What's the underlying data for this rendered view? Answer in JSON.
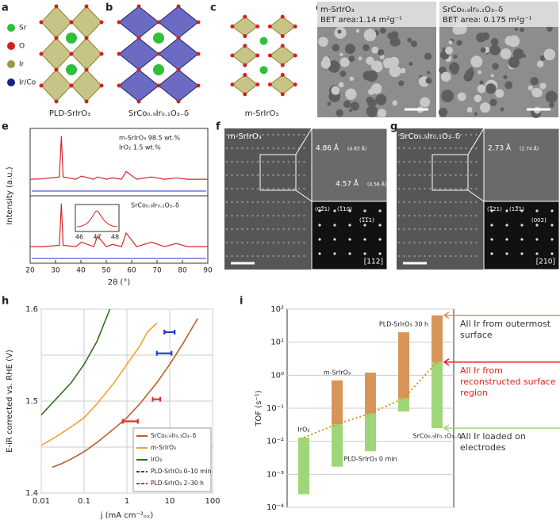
{
  "panel_labels": [
    "a",
    "b",
    "c",
    "d",
    "e",
    "f",
    "g",
    "h",
    "i"
  ],
  "panel_a": {
    "legend": [
      "Sr",
      "O",
      "Ir",
      "Ir/Co"
    ],
    "caption": "PLD-SrIrO₃"
  },
  "panel_b": {
    "caption": "SrCo₀.₉Ir₀.₁O₃₋δ"
  },
  "panel_c": {
    "caption": "m-SrIrO₃"
  },
  "panel_d": {
    "left_title": "m-SrIrO₃",
    "left_bet": "BET area:1.14 m²g⁻¹",
    "right_title": "SrCo₀.₉Ir₀.₁O₃₋δ",
    "right_bet": "BET area: 0.175 m²g⁻¹"
  },
  "panel_f": {
    "title": "m-SrIrO₃",
    "d1": "4.86 Å",
    "d1_ref": "(4.83 Å)",
    "d2": "4.57 Å",
    "d2_ref": "(4.56 Å)",
    "spots": [
      "(02̅1)",
      "(1̅10)",
      "(1̅1̅1)"
    ],
    "zone": "[112]"
  },
  "panel_g": {
    "title": "SrCo₀.₉Ir₀.₁O₃₋δ",
    "d1": "2.73 Å",
    "d1_ref": "(2.74 Å)",
    "spots": [
      "(1̅21)",
      "(12̅1)",
      "(002)"
    ],
    "zone": "[210]"
  },
  "chart_data": [
    {
      "type": "line",
      "ylabel": "Intensity (a.u.)",
      "xlabel": "2θ (°)",
      "xlim": [
        20,
        90
      ],
      "xticks": [
        20,
        30,
        40,
        50,
        60,
        70,
        80,
        90
      ],
      "ylim": [
        0,
        1.1
      ],
      "x": [
        20,
        25,
        31.5,
        32.3,
        33,
        38,
        40.2,
        45,
        46.6,
        50,
        52.5,
        56,
        57.8,
        62,
        67.8,
        73,
        77.5,
        82,
        90
      ],
      "series": [
        {
          "name": "m-SrIrO₃ 98.5 wt.%",
          "color": "#d62728",
          "values": [
            0.05,
            0.06,
            0.1,
            1.0,
            0.1,
            0.05,
            0.12,
            0.05,
            0.1,
            0.05,
            0.08,
            0.05,
            0.22,
            0.05,
            0.1,
            0.05,
            0.08,
            0.05,
            0.05
          ]
        },
        {
          "name": "SrCo₀.₉Ir₀.₁O₃₋δ",
          "color": "#d62728",
          "values": [
            0.05,
            0.05,
            0.08,
            1.0,
            0.08,
            0.05,
            0.15,
            0.05,
            0.28,
            0.05,
            0.1,
            0.05,
            0.35,
            0.05,
            0.15,
            0.05,
            0.12,
            0.05,
            0.05
          ]
        }
      ],
      "annotations": [
        "IrO₂ 1.5 wt.%"
      ],
      "inset_xticks": [
        46,
        47,
        48
      ]
    },
    {
      "type": "line",
      "xlabel": "j (mA cm⁻²ₒₓ)",
      "ylabel": "E-iR corrected vs. RHE (V)",
      "xscale": "log",
      "xlim": [
        0.01,
        100
      ],
      "xticks": [
        0.01,
        0.1,
        1,
        10,
        100
      ],
      "ylim": [
        1.4,
        1.6
      ],
      "yticks": [
        1.4,
        1.5,
        1.6
      ],
      "minor_yticks": [
        1.45,
        1.55
      ],
      "grid": true,
      "legend": "lower right",
      "series": [
        {
          "name": "SrCo₀.₉Ir₀.₁O₃₋δ",
          "color": "#b8612a",
          "x": [
            0.018,
            0.03,
            0.05,
            0.1,
            0.2,
            0.5,
            1,
            2,
            5,
            10,
            20,
            45
          ],
          "values": [
            1.428,
            1.432,
            1.437,
            1.445,
            1.455,
            1.47,
            1.482,
            1.497,
            1.52,
            1.54,
            1.562,
            1.59
          ]
        },
        {
          "name": "m-SrIrO₃",
          "color": "#f5a030",
          "x": [
            0.01,
            0.02,
            0.05,
            0.1,
            0.2,
            0.5,
            1,
            2,
            3,
            5
          ],
          "values": [
            1.452,
            1.46,
            1.472,
            1.482,
            1.497,
            1.52,
            1.54,
            1.56,
            1.575,
            1.585
          ]
        },
        {
          "name": "IrO₂",
          "color": "#2e6e1e",
          "x": [
            0.01,
            0.02,
            0.05,
            0.1,
            0.2,
            0.4
          ],
          "values": [
            1.485,
            1.5,
            1.52,
            1.54,
            1.565,
            1.6
          ]
        }
      ],
      "error_series": [
        {
          "name": "PLD-SrIrO₃ 0–10 min",
          "color": "#1f3fbf",
          "values": [
            1.575,
            1.552
          ],
          "xmin": [
            7.5,
            5
          ],
          "xmax": [
            13,
            11
          ]
        },
        {
          "name": "PLD-SrIrO₃ 2–30 h",
          "color": "#e0302a",
          "values": [
            1.502,
            1.478
          ],
          "xmin": [
            4,
            0.8
          ],
          "xmax": [
            6,
            1.8
          ]
        }
      ]
    },
    {
      "type": "bar",
      "ylabel": "TOF (s⁻¹)",
      "yscale": "log",
      "ylim": [
        0.0001,
        100
      ],
      "yticks": [
        {
          "value": 0.0001,
          "label": "10⁻⁴"
        },
        {
          "value": 0.001,
          "label": "10⁻³"
        },
        {
          "value": 0.01,
          "label": "10⁻²"
        },
        {
          "value": 0.1,
          "label": "10⁻¹"
        },
        {
          "value": 1,
          "label": "10⁰"
        },
        {
          "value": 10,
          "label": "10¹"
        },
        {
          "value": 100,
          "label": "10²"
        }
      ],
      "grid": true,
      "categories": [
        "IrO₂",
        "m-SrIrO₃",
        "PLD-SrIrO₃ 0 min",
        "PLD-SrIrO₃ 30 h",
        "SrCo₀.₉Ir₀.₁O₃₋δ"
      ],
      "low": [
        0.00025,
        0.0017,
        0.005,
        0.08,
        0.025
      ],
      "mid": [
        0.013,
        0.033,
        0.07,
        0.2,
        2.5
      ],
      "high": [
        null,
        0.7,
        1.2,
        20,
        65
      ],
      "colors": {
        "low": "#9fd67a",
        "high": "#d8955a",
        "line": "#c89a1a"
      },
      "annotations": [
        {
          "text": "All Ir from outermost surface",
          "color": "#333333"
        },
        {
          "text": "All Ir from reconstructed surface region",
          "color": "#e0201a"
        },
        {
          "text": "All Ir loaded on electrodes",
          "color": "#333333"
        }
      ]
    }
  ]
}
